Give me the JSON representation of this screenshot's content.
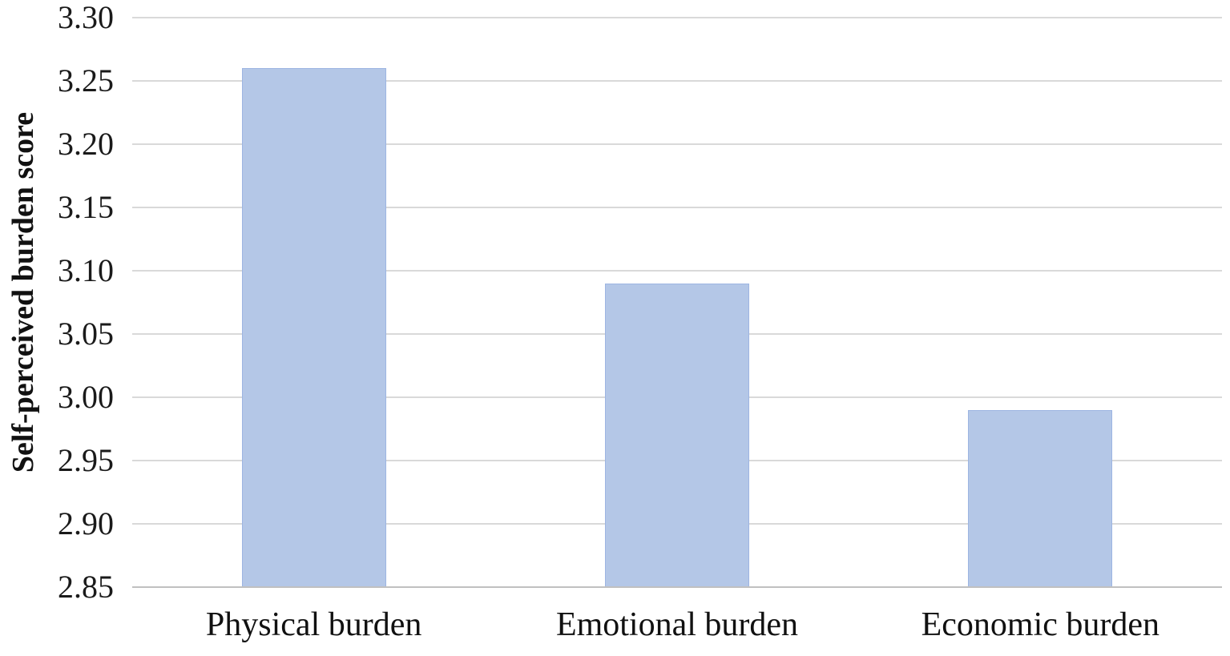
{
  "figure": {
    "kind": "standalone chart figure",
    "background": "#ffffff"
  },
  "chart_data": {
    "type": "bar",
    "title": "",
    "xlabel": "",
    "ylabel": "Self-perceived burden score",
    "categories": [
      "Physical burden",
      "Emotional burden",
      "Economic burden"
    ],
    "values": [
      3.26,
      3.09,
      2.99
    ],
    "ylim": [
      2.85,
      3.3
    ],
    "ytick_step": 0.05,
    "yticks": [
      2.85,
      2.9,
      2.95,
      3.0,
      3.05,
      3.1,
      3.15,
      3.2,
      3.25,
      3.3
    ],
    "grid": true,
    "legend_position": "none",
    "colors": {
      "bar_fill": "#b4c7e7",
      "bar_border": "#9db5e2",
      "gridline": "#d9d9d9",
      "axis_line": "#c0c0c0",
      "tick_text": "#1a1a1a",
      "label_text": "#111111"
    }
  }
}
